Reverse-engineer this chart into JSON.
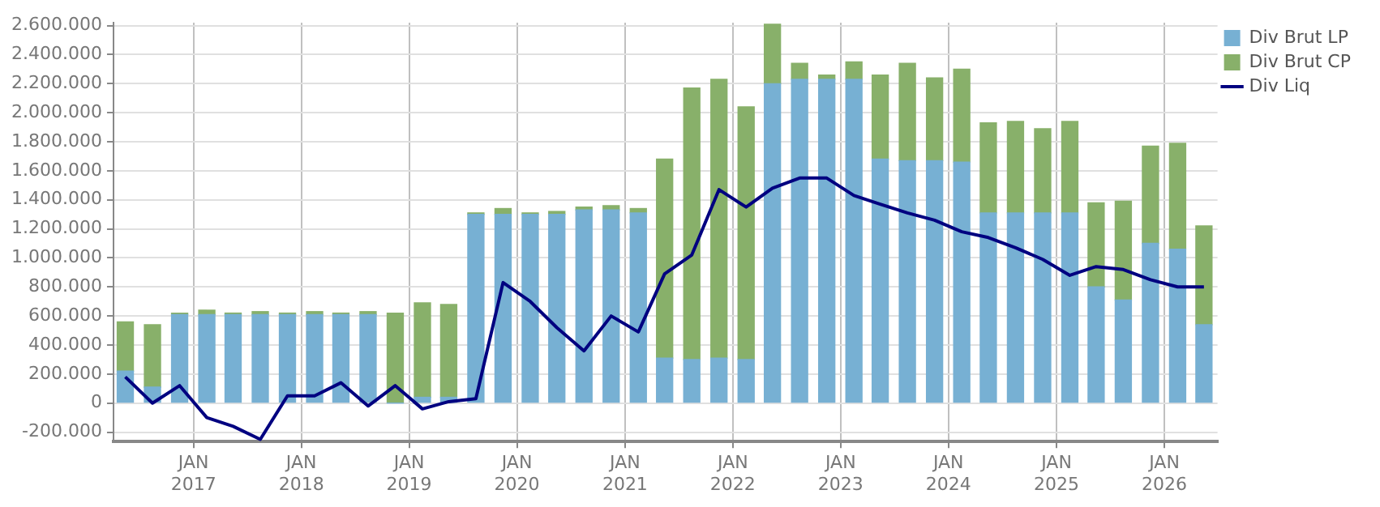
{
  "chart_data": {
    "type": "bar",
    "stacked": true,
    "legend": "top right",
    "grid": true,
    "x": [
      "2016-05-15",
      "2016-08-15",
      "2016-11-15",
      "2017-02-15",
      "2017-05-15",
      "2017-08-15",
      "2017-11-15",
      "2018-02-15",
      "2018-05-15",
      "2018-08-15",
      "2018-11-15",
      "2019-02-15",
      "2019-05-15",
      "2019-08-15",
      "2019-11-15",
      "2020-02-15",
      "2020-05-15",
      "2020-08-15",
      "2020-11-15",
      "2021-02-15",
      "2021-05-15",
      "2021-08-15",
      "2021-11-15",
      "2022-02-15",
      "2022-05-15",
      "2022-08-15",
      "2022-11-15",
      "2023-02-15",
      "2023-05-15",
      "2023-08-15",
      "2023-11-15",
      "2024-02-15",
      "2024-05-15",
      "2024-08-15",
      "2024-11-15",
      "2025-02-15",
      "2025-05-15",
      "2025-08-15",
      "2025-11-15",
      "2026-02-15",
      "2026-05-15"
    ],
    "series": [
      {
        "name": "Div Brut LP",
        "color": "#77b0d3",
        "values": [
          220000,
          110000,
          610000,
          610000,
          610000,
          610000,
          610000,
          610000,
          610000,
          610000,
          0,
          40000,
          40000,
          1300000,
          1300000,
          1300000,
          1300000,
          1330000,
          1330000,
          1310000,
          310000,
          300000,
          310000,
          300000,
          2200000,
          2230000,
          2230000,
          2230000,
          1680000,
          1670000,
          1670000,
          1660000,
          1310000,
          1310000,
          1310000,
          1310000,
          800000,
          710000,
          1100000,
          1060000,
          540000
        ]
      },
      {
        "name": "Div Brut CP",
        "color": "#88b06a",
        "values": [
          340000,
          430000,
          10000,
          30000,
          10000,
          20000,
          10000,
          20000,
          10000,
          20000,
          620000,
          650000,
          640000,
          10000,
          40000,
          10000,
          20000,
          20000,
          30000,
          30000,
          1370000,
          1870000,
          1920000,
          1740000,
          410000,
          110000,
          30000,
          120000,
          580000,
          670000,
          570000,
          640000,
          620000,
          630000,
          580000,
          630000,
          580000,
          680000,
          670000,
          730000,
          680000
        ]
      },
      {
        "name": "Div Liq",
        "type": "line",
        "color": "#000080",
        "line_style": "solid",
        "marker": "none",
        "values": [
          180000,
          0,
          120000,
          -100000,
          -160000,
          -250000,
          50000,
          50000,
          140000,
          -20000,
          120000,
          -40000,
          10000,
          30000,
          830000,
          700000,
          520000,
          360000,
          600000,
          490000,
          890000,
          1020000,
          1470000,
          1350000,
          1480000,
          1550000,
          1550000,
          1430000,
          1370000,
          1310000,
          1260000,
          1180000,
          1140000,
          1070000,
          990000,
          880000,
          940000,
          920000,
          850000,
          800000,
          800000
        ]
      }
    ],
    "xlim": [
      "2016-04-05",
      "2026-06-30"
    ],
    "xticks": [
      {
        "value": "2017-01-01",
        "label": "JAN 2017"
      },
      {
        "value": "2018-01-01",
        "label": "JAN 2018"
      },
      {
        "value": "2019-01-01",
        "label": "JAN 2019"
      },
      {
        "value": "2020-01-01",
        "label": "JAN 2020"
      },
      {
        "value": "2021-01-01",
        "label": "JAN 2021"
      },
      {
        "value": "2022-01-01",
        "label": "JAN 2022"
      },
      {
        "value": "2023-01-01",
        "label": "JAN 2023"
      },
      {
        "value": "2024-01-01",
        "label": "JAN 2024"
      },
      {
        "value": "2025-01-01",
        "label": "JAN 2025"
      },
      {
        "value": "2026-01-01",
        "label": "JAN 2026"
      }
    ],
    "ylim": [
      -265000,
      2620000
    ],
    "yticks": [
      {
        "value": -200000,
        "label": "-200.000"
      },
      {
        "value": 0,
        "label": "0"
      },
      {
        "value": 200000,
        "label": "200.000"
      },
      {
        "value": 400000,
        "label": "400.000"
      },
      {
        "value": 600000,
        "label": "600.000"
      },
      {
        "value": 800000,
        "label": "800.000"
      },
      {
        "value": 1000000,
        "label": "1.000.000"
      },
      {
        "value": 1200000,
        "label": "1.200.000"
      },
      {
        "value": 1400000,
        "label": "1.400.000"
      },
      {
        "value": 1600000,
        "label": "1.600.000"
      },
      {
        "value": 1800000,
        "label": "1.800.000"
      },
      {
        "value": 2000000,
        "label": "2.000.000"
      },
      {
        "value": 2200000,
        "label": "2.200.000"
      },
      {
        "value": 2400000,
        "label": "2.400.000"
      },
      {
        "value": 2600000,
        "label": "2.600.000"
      }
    ]
  }
}
